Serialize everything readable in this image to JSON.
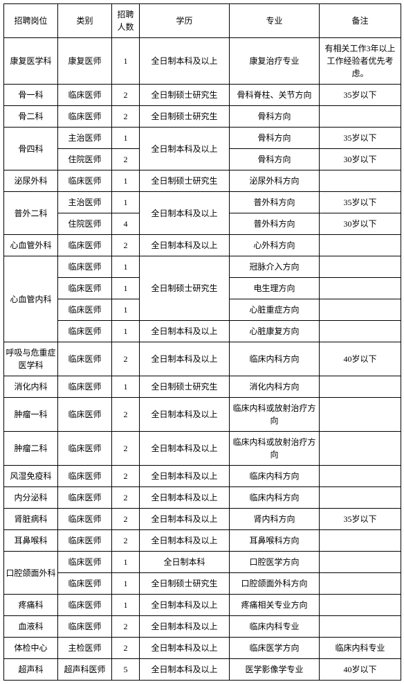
{
  "headers": {
    "position": "招聘岗位",
    "category": "类别",
    "count": "招聘人数",
    "education": "学历",
    "major": "专业",
    "note": "备注"
  },
  "rows": {
    "r1": {
      "pos": "康复医学科",
      "cat": "康复医师",
      "num": "1",
      "edu": "全日制本科及以上",
      "major": "康复治疗专业",
      "note": "有相关工作3年以上工作经验者优先考虑。"
    },
    "r2": {
      "pos": "骨一科",
      "cat": "临床医师",
      "num": "2",
      "edu": "全日制硕士研究生",
      "major": "骨科脊柱、关节方向",
      "note": "35岁以下"
    },
    "r3": {
      "pos": "骨二科",
      "cat": "临床医师",
      "num": "2",
      "edu": "全日制硕士研究生",
      "major": "骨科方向",
      "note": ""
    },
    "r4": {
      "pos": "骨四科",
      "cat": "主治医师",
      "num": "1",
      "edu": "全日制本科及以上",
      "major": "骨科方向",
      "note": "35岁以下"
    },
    "r5": {
      "cat": "住院医师",
      "num": "2",
      "major": "骨科方向",
      "note": "30岁以下"
    },
    "r6": {
      "pos": "泌尿外科",
      "cat": "临床医师",
      "num": "1",
      "edu": "全日制硕士研究生",
      "major": "泌尿外科方向",
      "note": ""
    },
    "r7": {
      "pos": "普外二科",
      "cat": "主治医师",
      "num": "1",
      "edu": "全日制本科及以上",
      "major": "普外科方向",
      "note": "35岁以下"
    },
    "r8": {
      "cat": "住院医师",
      "num": "4",
      "major": "普外科方向",
      "note": "30岁以下"
    },
    "r9": {
      "pos": "心血管外科",
      "cat": "临床医师",
      "num": "2",
      "edu": "全日制本科及以上",
      "major": "心外科方向",
      "note": ""
    },
    "r10": {
      "pos": "心血管内科",
      "cat": "临床医师",
      "num": "1",
      "edu": "全日制硕士研究生",
      "major": "冠脉介入方向",
      "note": ""
    },
    "r11": {
      "cat": "临床医师",
      "num": "1",
      "major": "电生理方向",
      "note": ""
    },
    "r12": {
      "cat": "临床医师",
      "num": "1",
      "major": "心脏重症方向",
      "note": ""
    },
    "r13": {
      "cat": "临床医师",
      "num": "1",
      "edu": "全日制本科及以上",
      "major": "心脏康复方向",
      "note": ""
    },
    "r14": {
      "pos": "呼吸与危重症医学科",
      "cat": "临床医师",
      "num": "2",
      "edu": "全日制本科及以上",
      "major": "临床内科方向",
      "note": "40岁以下"
    },
    "r15": {
      "pos": "消化内科",
      "cat": "临床医师",
      "num": "1",
      "edu": "全日制硕士研究生",
      "major": "消化内科方向",
      "note": ""
    },
    "r16": {
      "pos": "肿瘤一科",
      "cat": "临床医师",
      "num": "2",
      "edu": "全日制本科及以上",
      "major": "临床内科或放射治疗方向",
      "note": ""
    },
    "r17": {
      "pos": "肿瘤二科",
      "cat": "临床医师",
      "num": "2",
      "edu": "全日制本科及以上",
      "major": "临床内科或放射治疗方向",
      "note": ""
    },
    "r18": {
      "pos": "风湿免疫科",
      "cat": "临床医师",
      "num": "2",
      "edu": "全日制本科及以上",
      "major": "临床内科方向",
      "note": ""
    },
    "r19": {
      "pos": "内分泌科",
      "cat": "临床医师",
      "num": "2",
      "edu": "全日制本科及以上",
      "major": "临床内科方向",
      "note": ""
    },
    "r20": {
      "pos": "肾脏病科",
      "cat": "临床医师",
      "num": "2",
      "edu": "全日制本科及以上",
      "major": "肾内科方向",
      "note": "35岁以下"
    },
    "r21": {
      "pos": "耳鼻喉科",
      "cat": "临床医师",
      "num": "2",
      "edu": "全日制本科及以上",
      "major": "耳鼻喉科方向",
      "note": ""
    },
    "r22": {
      "pos": "口腔颌面外科",
      "cat": "临床医师",
      "num": "1",
      "edu": "全日制本科",
      "major": "口腔医学方向",
      "note": ""
    },
    "r23": {
      "cat": "临床医师",
      "num": "1",
      "edu": "全日制硕士研究生",
      "major": "口腔颌面外科方向",
      "note": ""
    },
    "r24": {
      "pos": "疼痛科",
      "cat": "临床医师",
      "num": "1",
      "edu": "全日制本科及以上",
      "major": "疼痛相关专业方向",
      "note": ""
    },
    "r25": {
      "pos": "血液科",
      "cat": "临床医师",
      "num": "2",
      "edu": "全日制本科及以上",
      "major": "临床内科专业",
      "note": ""
    },
    "r26": {
      "pos": "体检中心",
      "cat": "主检医师",
      "num": "2",
      "edu": "全日制本科及以上",
      "major": "临床医学方向",
      "note": "临床内科专业"
    },
    "r27": {
      "pos": "超声科",
      "cat": "超声科医师",
      "num": "5",
      "edu": "全日制本科及以上",
      "major": "医学影像学专业",
      "note": "40岁以下"
    }
  }
}
